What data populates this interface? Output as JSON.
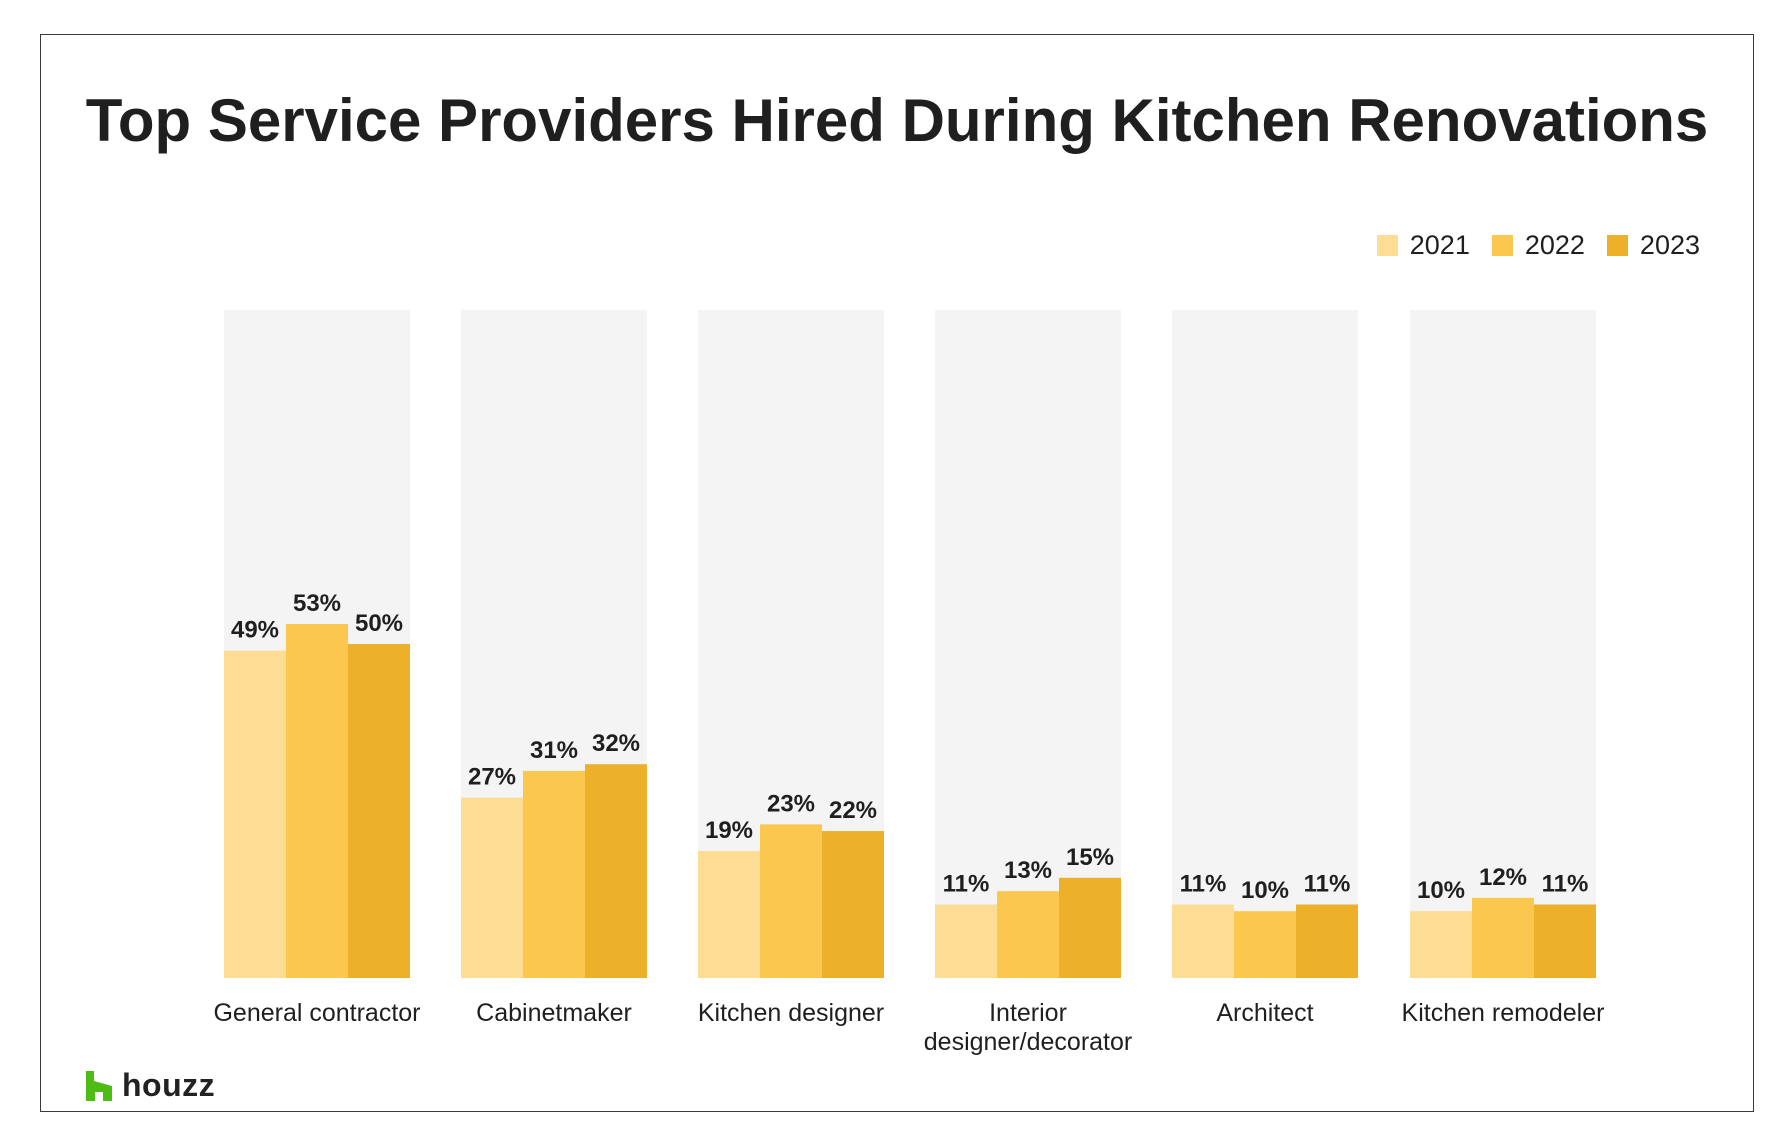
{
  "chart_data": {
    "type": "bar",
    "title": "Top Service Providers Hired During Kitchen Renovations",
    "categories": [
      "General contractor",
      "Cabinetmaker",
      "Kitchen designer",
      "Interior designer/decorator",
      "Architect",
      "Kitchen remodeler"
    ],
    "category_lines": [
      [
        "General contractor"
      ],
      [
        "Cabinetmaker"
      ],
      [
        "Kitchen designer"
      ],
      [
        "Interior",
        "designer/decorator"
      ],
      [
        "Architect"
      ],
      [
        "Kitchen remodeler"
      ]
    ],
    "series": [
      {
        "name": "2021",
        "color": "#FDDC93",
        "values": [
          49,
          27,
          19,
          11,
          11,
          10
        ],
        "labels": [
          "49%",
          "27%",
          "19%",
          "11%",
          "11%",
          "10%"
        ]
      },
      {
        "name": "2022",
        "color": "#FCC74F",
        "values": [
          53,
          31,
          23,
          13,
          10,
          12
        ],
        "labels": [
          "53%",
          "31%",
          "23%",
          "13%",
          "10%",
          "12%"
        ]
      },
      {
        "name": "2023",
        "color": "#ECB02A",
        "values": [
          50,
          32,
          22,
          15,
          11,
          11
        ],
        "labels": [
          "50%",
          "32%",
          "22%",
          "15%",
          "11%",
          "11%"
        ]
      }
    ],
    "ylim": [
      0,
      100
    ],
    "background_bar_color": "#F4F4F4",
    "legend_position": "top-right",
    "grid": false
  },
  "brand": {
    "name": "houzz",
    "icon": "houzz-logo-icon",
    "color": "#4DBC15"
  }
}
